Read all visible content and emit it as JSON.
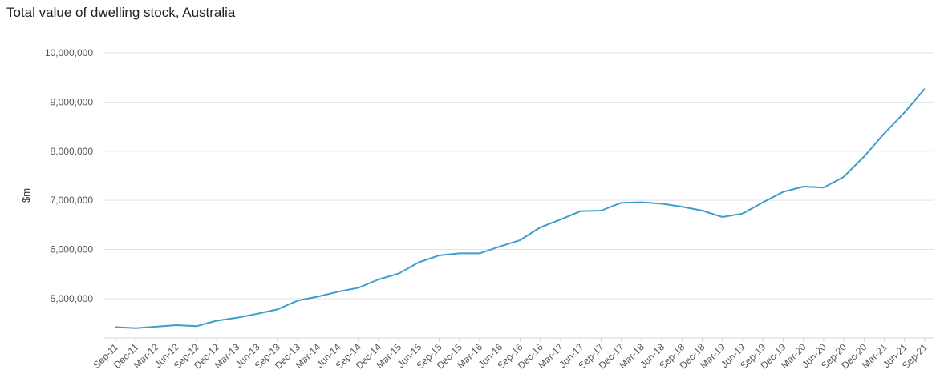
{
  "chart_data": {
    "type": "line",
    "title": "Total value of dwelling stock, Australia",
    "xlabel": "",
    "ylabel": "$m",
    "ylim": [
      4200000,
      10000000
    ],
    "yticks": [
      5000000,
      6000000,
      7000000,
      8000000,
      9000000,
      10000000
    ],
    "ytick_labels": [
      "5,000,000",
      "6,000,000",
      "7,000,000",
      "8,000,000",
      "9,000,000",
      "10,000,000"
    ],
    "grid": "horizontal",
    "legend": "none",
    "series_color": "#3e9ecb",
    "categories": [
      "Sep-11",
      "Dec-11",
      "Mar-12",
      "Jun-12",
      "Sep-12",
      "Dec-12",
      "Mar-13",
      "Jun-13",
      "Sep-13",
      "Dec-13",
      "Mar-14",
      "Jun-14",
      "Sep-14",
      "Dec-14",
      "Mar-15",
      "Jun-15",
      "Sep-15",
      "Dec-15",
      "Mar-16",
      "Jun-16",
      "Sep-16",
      "Dec-16",
      "Mar-17",
      "Jun-17",
      "Sep-17",
      "Dec-17",
      "Mar-18",
      "Jun-18",
      "Sep-18",
      "Dec-18",
      "Mar-19",
      "Jun-19",
      "Sep-19",
      "Dec-19",
      "Mar-20",
      "Jun-20",
      "Sep-20",
      "Dec-20",
      "Mar-21",
      "Jun-21",
      "Sep-21"
    ],
    "series": [
      {
        "values": [
          4420000,
          4400000,
          4430000,
          4460000,
          4440000,
          4550000,
          4610000,
          4690000,
          4780000,
          4960000,
          5040000,
          5140000,
          5220000,
          5390000,
          5510000,
          5740000,
          5880000,
          5920000,
          5920000,
          6060000,
          6190000,
          6450000,
          6610000,
          6780000,
          6790000,
          6950000,
          6960000,
          6930000,
          6870000,
          6790000,
          6660000,
          6730000,
          6960000,
          7170000,
          7280000,
          7260000,
          7480000,
          7890000,
          8360000,
          8790000,
          9270000
        ]
      }
    ]
  }
}
